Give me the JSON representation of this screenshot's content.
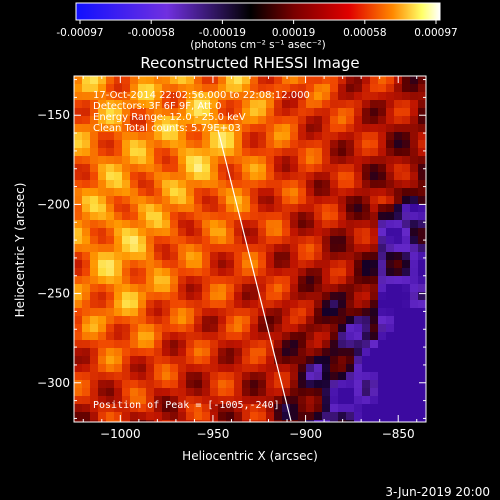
{
  "colorbar": {
    "ticks": [
      "-0.00097",
      "-0.00058",
      "-0.00019",
      "0.00019",
      "0.00058",
      "0.00097"
    ],
    "units": "(photons cm⁻² s⁻¹ asec⁻²)",
    "colors": [
      "#1010ff",
      "#7030e0",
      "#000000",
      "#7a0000",
      "#e00000",
      "#ff8800",
      "#ffff66",
      "#ffffff"
    ]
  },
  "image": {
    "title": "Reconstructed RHESSI Image",
    "info_lines": [
      "17-Oct-2014 22:02:56.000 to 22:08:12.000",
      "Detectors: 3F 6F 9F, Att 0",
      "Energy Range: 12.0 - 25.0 keV",
      "Clean    Total counts: 5.79E+03"
    ],
    "peak_label": "Position of Peak = [-1005,-240]"
  },
  "axes": {
    "x_label": "Heliocentric X (arcsec)",
    "y_label": "Heliocentric Y (arcsec)",
    "x_ticks": [
      "-1000",
      "-950",
      "-900",
      "-850"
    ],
    "y_ticks": [
      "-150",
      "-200",
      "-250",
      "-300"
    ],
    "x_range": [
      -1025,
      -835
    ],
    "y_range": [
      -322,
      -128
    ]
  },
  "footer": {
    "date": "3-Jun-2019 20:00"
  }
}
